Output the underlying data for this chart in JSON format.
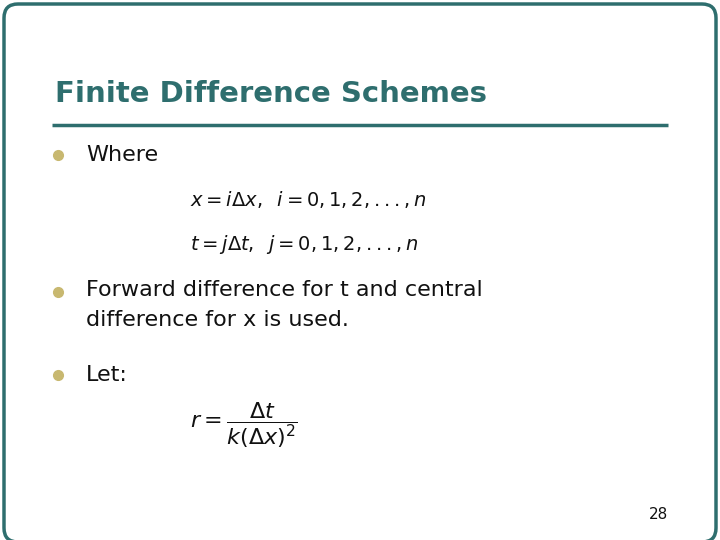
{
  "title": "Finite Difference Schemes",
  "title_color": "#2E6E6E",
  "background_color": "#FFFFFF",
  "border_color": "#2E6E6E",
  "bullet_color": "#C8B870",
  "bullet1_text": "Where",
  "bullet2_text": "Forward difference for t and central\ndifference for x is used.",
  "bullet3_text": "Let:",
  "eq1": "$x = i\\Delta x,\\;\\; i = 0, 1, 2, ..., n$",
  "eq2": "$t = j\\Delta t,\\;\\; j = 0, 1, 2, ..., n$",
  "eq3": "$r = \\dfrac{\\Delta t}{k(\\Delta x)^2}$",
  "page_num": "28",
  "line_color": "#2E6E6E",
  "text_color": "#111111",
  "fig_width": 7.2,
  "fig_height": 5.4,
  "dpi": 100
}
